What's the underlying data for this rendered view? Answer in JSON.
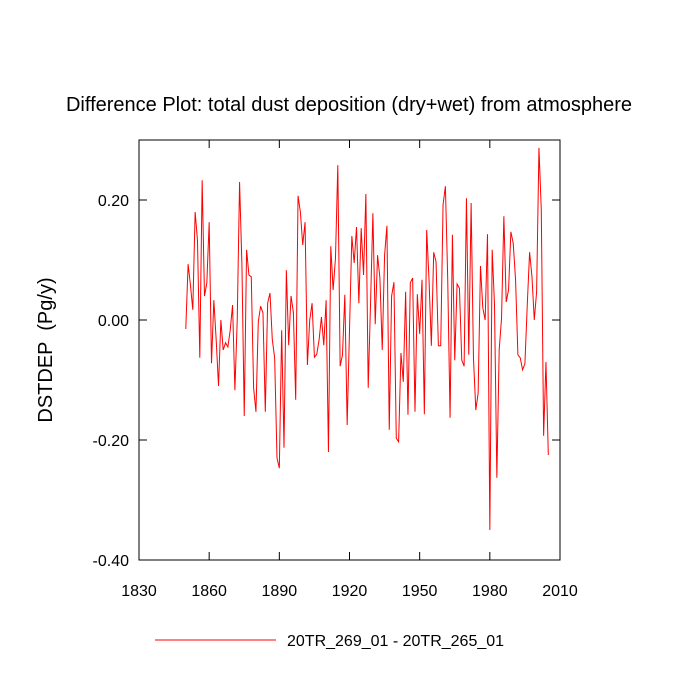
{
  "chart_data": {
    "type": "line",
    "title": "Difference Plot: total dust deposition (dry+wet) from atmosphere",
    "y_label": "DSTDEP  (Pg/y)",
    "x": [
      1850,
      1851,
      1852,
      1853,
      1854,
      1855,
      1856,
      1857,
      1858,
      1859,
      1860,
      1861,
      1862,
      1863,
      1864,
      1865,
      1866,
      1867,
      1868,
      1869,
      1870,
      1871,
      1872,
      1873,
      1874,
      1875,
      1876,
      1877,
      1878,
      1879,
      1880,
      1881,
      1882,
      1883,
      1884,
      1885,
      1886,
      1887,
      1888,
      1889,
      1890,
      1891,
      1892,
      1893,
      1894,
      1895,
      1896,
      1897,
      1898,
      1899,
      1900,
      1901,
      1902,
      1903,
      1904,
      1905,
      1906,
      1907,
      1908,
      1909,
      1910,
      1911,
      1912,
      1913,
      1914,
      1915,
      1916,
      1917,
      1918,
      1919,
      1920,
      1921,
      1922,
      1923,
      1924,
      1925,
      1926,
      1927,
      1928,
      1929,
      1930,
      1931,
      1932,
      1933,
      1934,
      1935,
      1936,
      1937,
      1938,
      1939,
      1940,
      1941,
      1942,
      1943,
      1944,
      1945,
      1946,
      1947,
      1948,
      1949,
      1950,
      1951,
      1952,
      1953,
      1954,
      1955,
      1956,
      1957,
      1958,
      1959,
      1960,
      1961,
      1962,
      1963,
      1964,
      1965,
      1966,
      1967,
      1968,
      1969,
      1970,
      1971,
      1972,
      1973,
      1974,
      1975,
      1976,
      1977,
      1978,
      1979,
      1980,
      1981,
      1982,
      1983,
      1984,
      1985,
      1986,
      1987,
      1988,
      1989,
      1990,
      1991,
      1992,
      1993,
      1994,
      1995,
      1996,
      1997,
      1998,
      1999,
      2000,
      2001,
      2002,
      2003,
      2004,
      2005
    ],
    "series": [
      {
        "name": "20TR_269_01 - 20TR_265_01",
        "color": "#ff0000",
        "values": [
          -0.015,
          0.093,
          0.058,
          0.017,
          0.18,
          0.133,
          -0.063,
          0.233,
          0.04,
          0.062,
          0.163,
          -0.072,
          0.033,
          -0.033,
          -0.11,
          0,
          -0.05,
          -0.038,
          -0.045,
          -0.017,
          0.025,
          -0.117,
          0,
          0.23,
          0.093,
          -0.16,
          0.117,
          0.075,
          0.072,
          -0.113,
          -0.153,
          -0.003,
          0.023,
          0.012,
          -0.153,
          0.028,
          0.045,
          -0.033,
          -0.063,
          -0.23,
          -0.247,
          -0.017,
          -0.213,
          0.083,
          -0.042,
          0.04,
          0.013,
          -0.133,
          0.207,
          0.18,
          0.125,
          0.163,
          -0.075,
          0,
          0.028,
          -0.062,
          -0.057,
          -0.033,
          0.005,
          -0.042,
          0.033,
          -0.22,
          0.123,
          0.05,
          0.103,
          0.258,
          -0.077,
          -0.058,
          0.042,
          -0.175,
          -0.017,
          0.14,
          0.095,
          0.155,
          0.028,
          0.153,
          0.075,
          0.21,
          -0.113,
          0.028,
          0.178,
          -0.007,
          0.108,
          0.07,
          -0.05,
          0.108,
          0.157,
          -0.183,
          0.04,
          0.063,
          -0.197,
          -0.203,
          -0.055,
          -0.103,
          0.047,
          -0.158,
          0.062,
          0.07,
          -0.153,
          0.043,
          -0.023,
          0.067,
          -0.157,
          0.15,
          0.067,
          -0.043,
          0.113,
          0.097,
          -0.043,
          -0.043,
          0.192,
          0.223,
          0.067,
          -0.163,
          0.142,
          -0.067,
          0.06,
          0.053,
          -0.067,
          -0.077,
          0.203,
          -0.058,
          0.195,
          -0.063,
          -0.15,
          -0.122,
          0.09,
          0.02,
          0,
          0.143,
          -0.35,
          0.117,
          0.025,
          -0.263,
          -0.05,
          0.003,
          0.173,
          0.03,
          0.05,
          0.147,
          0.128,
          0.067,
          -0.058,
          -0.063,
          -0.083,
          -0.073,
          0.025,
          0.113,
          0.073,
          0,
          0.047,
          0.287,
          0.183,
          -0.193,
          -0.07,
          -0.225
        ]
      }
    ],
    "xlim": [
      1830,
      2010
    ],
    "xticks": [
      1830,
      1860,
      1890,
      1920,
      1950,
      1980,
      2010
    ],
    "ylim": [
      -0.4,
      0.3
    ],
    "yticks": [
      {
        "value": -0.4,
        "label": "-0.40"
      },
      {
        "value": -0.2,
        "label": "-0.20"
      },
      {
        "value": 0,
        "label": "0.00"
      },
      {
        "value": 0.2,
        "label": "0.20"
      }
    ],
    "grid": false,
    "legend": "bottom"
  }
}
